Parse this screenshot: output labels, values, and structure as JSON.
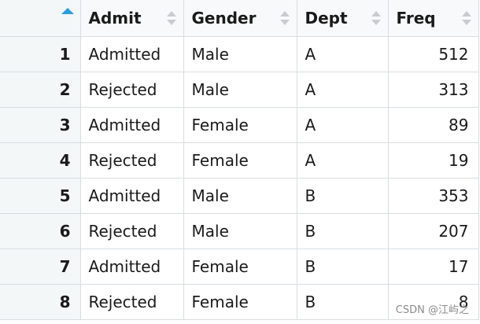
{
  "table": {
    "columns": [
      {
        "label": ""
      },
      {
        "label": "Admit"
      },
      {
        "label": "Gender"
      },
      {
        "label": "Dept"
      },
      {
        "label": "Freq"
      }
    ],
    "rows": [
      {
        "index": "1",
        "admit": "Admitted",
        "gender": "Male",
        "dept": "A",
        "freq": "512"
      },
      {
        "index": "2",
        "admit": "Rejected",
        "gender": "Male",
        "dept": "A",
        "freq": "313"
      },
      {
        "index": "3",
        "admit": "Admitted",
        "gender": "Female",
        "dept": "A",
        "freq": "89"
      },
      {
        "index": "4",
        "admit": "Rejected",
        "gender": "Female",
        "dept": "A",
        "freq": "19"
      },
      {
        "index": "5",
        "admit": "Admitted",
        "gender": "Male",
        "dept": "B",
        "freq": "353"
      },
      {
        "index": "6",
        "admit": "Rejected",
        "gender": "Male",
        "dept": "B",
        "freq": "207"
      },
      {
        "index": "7",
        "admit": "Admitted",
        "gender": "Female",
        "dept": "B",
        "freq": "17"
      },
      {
        "index": "8",
        "admit": "Rejected",
        "gender": "Female",
        "dept": "B",
        "freq": "8"
      }
    ],
    "sort_state": "ascending-by-index",
    "icons": {
      "index_sort": "sort-ascending-arrow-icon",
      "column_sort": "sort-both-arrows-icon"
    },
    "colors": {
      "active_sort_arrow": "#2a9de0",
      "inactive_sort_arrow": "#c8ccd0",
      "index_column_bg": "#f3f7f8",
      "grid_border": "#d9dde1"
    }
  },
  "watermark": {
    "text": "CSDN @江屿之"
  }
}
